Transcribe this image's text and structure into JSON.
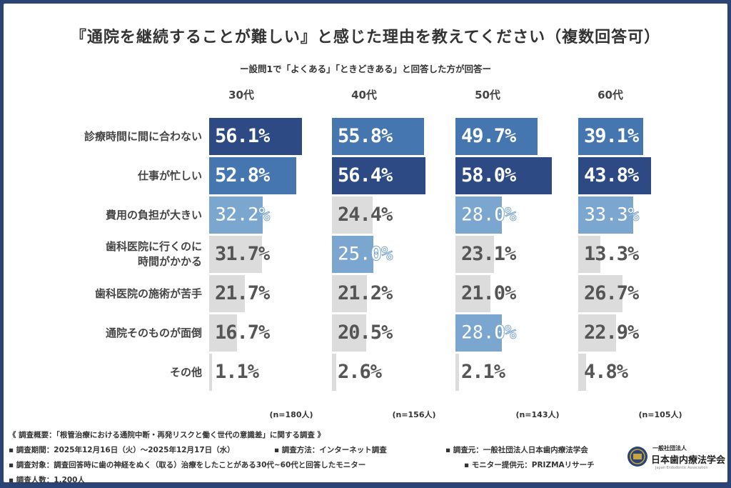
{
  "chart_data": {
    "type": "bar",
    "title": "『通院を継続することが難しい』と感じた理由を教えてください（複数回答可）",
    "subtitle": "ー設問1で「よくある」「ときどきある」と回答した方が回答ー",
    "categories": [
      "診療時間に間に合わない",
      "仕事が忙しい",
      "費用の負担が大きい",
      "歯科医院に行くのに\n時間がかかる",
      "歯科医院の施術が苦手",
      "通院そのものが面倒",
      "その他"
    ],
    "series": [
      {
        "name": "30代",
        "n": "(n=180人)",
        "values": [
          56.1,
          52.8,
          32.2,
          31.7,
          21.7,
          16.7,
          1.1
        ]
      },
      {
        "name": "40代",
        "n": "(n=156人)",
        "values": [
          55.8,
          56.4,
          24.4,
          25.0,
          21.2,
          20.5,
          2.6
        ]
      },
      {
        "name": "50代",
        "n": "(n=143人)",
        "values": [
          49.7,
          58.0,
          28.0,
          23.1,
          21.0,
          28.0,
          2.1
        ]
      },
      {
        "name": "60代",
        "n": "(n=105人)",
        "values": [
          39.1,
          43.8,
          33.3,
          13.3,
          26.7,
          22.9,
          4.8
        ]
      }
    ],
    "unit": "%",
    "orientation": "horizontal",
    "colors": {
      "rank1": "#2d4a85",
      "rank2": "#4676b0",
      "rank3": "#7ba6cf",
      "other": "#dcdcdc"
    }
  },
  "footer": {
    "overview": "《 調査概要：「根管治療における通院中断・再発リスクと働く世代の意識差」に関する調査 》",
    "period": "▪ 調査期間：2025年12月16日（火）～2025年12月17日（水）",
    "method": "▪ 調査方法：インターネット調査",
    "source": "▪ 調査元：一般社団法人日本歯内療法学会",
    "target": "▪ 調査対象：調査回答時に歯の神経をぬく（取る）治療をしたことがある30代~60代と回答したモニター",
    "provider": "▪ モニター提供元：PRIZMAリサーチ",
    "count": "▪ 調査人数：1,200人"
  },
  "logo": {
    "top": "一般社団法人",
    "name": "日本歯内療法学会",
    "en": "Japan Endodontic Association"
  }
}
